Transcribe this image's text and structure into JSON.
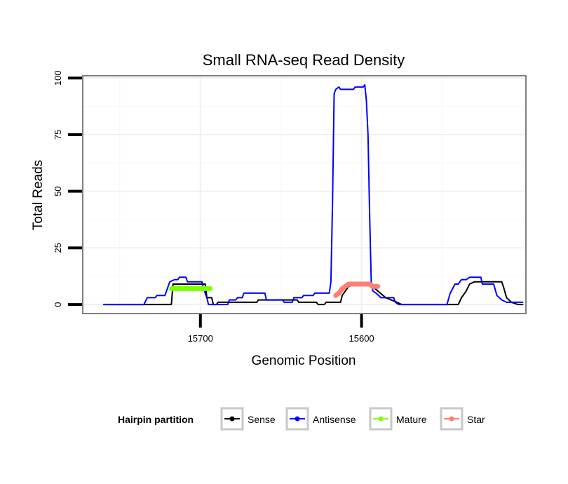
{
  "chart_data": {
    "type": "line",
    "title": "Small RNA-seq Read Density",
    "xlabel": "Genomic Position",
    "ylabel": "Total Reads",
    "xlim": [
      15773,
      15498
    ],
    "ylim": [
      -4,
      101
    ],
    "x_reversed": true,
    "grid": true,
    "x_ticks": [
      15700,
      15600
    ],
    "x_tick_labels": [
      "15700",
      "15600"
    ],
    "y_ticks": [
      0,
      25,
      50,
      75,
      100
    ],
    "y_tick_labels": [
      "0",
      "25",
      "50",
      "75",
      "100"
    ],
    "legend": {
      "title": "Hairpin partition",
      "position": "bottom",
      "entries": [
        {
          "label": "Sense",
          "color": "#000000"
        },
        {
          "label": "Antisense",
          "color": "#0000ff"
        },
        {
          "label": "Mature",
          "color": "#7fff00"
        },
        {
          "label": "Star",
          "color": "#fa8072"
        }
      ]
    },
    "series": [
      {
        "name": "Sense",
        "color": "#000000",
        "points": [
          [
            15760,
            0
          ],
          [
            15718,
            0
          ],
          [
            15717,
            9
          ],
          [
            15712,
            9
          ],
          [
            15711,
            9
          ],
          [
            15697,
            9
          ],
          [
            15696,
            3
          ],
          [
            15693,
            3
          ],
          [
            15692,
            0
          ],
          [
            15690,
            0
          ],
          [
            15689,
            1
          ],
          [
            15665,
            1
          ],
          [
            15664,
            2
          ],
          [
            15640,
            2
          ],
          [
            15639,
            1
          ],
          [
            15628,
            1
          ],
          [
            15627,
            0
          ],
          [
            15623,
            0
          ],
          [
            15622,
            1
          ],
          [
            15613,
            1
          ],
          [
            15612,
            4
          ],
          [
            15608,
            8
          ],
          [
            15603,
            9
          ],
          [
            15595,
            9
          ],
          [
            15590,
            6
          ],
          [
            15585,
            3
          ],
          [
            15578,
            1
          ],
          [
            15575,
            0
          ],
          [
            15540,
            0
          ],
          [
            15538,
            3
          ],
          [
            15535,
            6
          ],
          [
            15533,
            9
          ],
          [
            15530,
            10
          ],
          [
            15513,
            10
          ],
          [
            15512,
            8
          ],
          [
            15510,
            3
          ],
          [
            15507,
            1
          ],
          [
            15503,
            0
          ],
          [
            15500,
            0
          ]
        ]
      },
      {
        "name": "Antisense",
        "color": "#0000ff",
        "points": [
          [
            15760,
            0
          ],
          [
            15735,
            0
          ],
          [
            15733,
            3
          ],
          [
            15728,
            3
          ],
          [
            15727,
            4
          ],
          [
            15722,
            4
          ],
          [
            15721,
            6
          ],
          [
            15719,
            10
          ],
          [
            15716,
            11
          ],
          [
            15714,
            11
          ],
          [
            15713,
            12
          ],
          [
            15709,
            12
          ],
          [
            15708,
            10
          ],
          [
            15699,
            10
          ],
          [
            15698,
            7
          ],
          [
            15696,
            3
          ],
          [
            15695,
            0
          ],
          [
            15683,
            0
          ],
          [
            15682,
            2
          ],
          [
            15678,
            2
          ],
          [
            15677,
            3
          ],
          [
            15674,
            3
          ],
          [
            15673,
            5
          ],
          [
            15660,
            5
          ],
          [
            15659,
            2
          ],
          [
            15649,
            2
          ],
          [
            15648,
            1
          ],
          [
            15643,
            1
          ],
          [
            15642,
            3
          ],
          [
            15637,
            3
          ],
          [
            15636,
            4
          ],
          [
            15630,
            4
          ],
          [
            15629,
            5
          ],
          [
            15620,
            5
          ],
          [
            15619,
            10
          ],
          [
            15618,
            45
          ],
          [
            15617,
            93
          ],
          [
            15616,
            95
          ],
          [
            15614,
            96
          ],
          [
            15613,
            95
          ],
          [
            15605,
            95
          ],
          [
            15604,
            96
          ],
          [
            15599,
            96
          ],
          [
            15598,
            97
          ],
          [
            15597,
            90
          ],
          [
            15596,
            75
          ],
          [
            15595,
            40
          ],
          [
            15594,
            10
          ],
          [
            15593,
            6
          ],
          [
            15591,
            5
          ],
          [
            15588,
            3
          ],
          [
            15580,
            3
          ],
          [
            15579,
            1
          ],
          [
            15577,
            0
          ],
          [
            15547,
            0
          ],
          [
            15545,
            5
          ],
          [
            15542,
            9
          ],
          [
            15540,
            9
          ],
          [
            15538,
            11
          ],
          [
            15535,
            11
          ],
          [
            15533,
            12
          ],
          [
            15526,
            12
          ],
          [
            15525,
            9
          ],
          [
            15518,
            9
          ],
          [
            15516,
            4
          ],
          [
            15513,
            2
          ],
          [
            15510,
            1
          ],
          [
            15500,
            1
          ]
        ]
      },
      {
        "name": "Mature",
        "color": "#7fff00",
        "points": [
          [
            15718,
            7
          ],
          [
            15694,
            7
          ]
        ]
      },
      {
        "name": "Star",
        "color": "#fa8072",
        "points": [
          [
            15616,
            4
          ],
          [
            15614,
            5
          ],
          [
            15612,
            7
          ],
          [
            15610,
            8
          ],
          [
            15608,
            9
          ],
          [
            15595,
            9
          ],
          [
            15593,
            8
          ],
          [
            15590,
            8
          ]
        ]
      }
    ]
  }
}
